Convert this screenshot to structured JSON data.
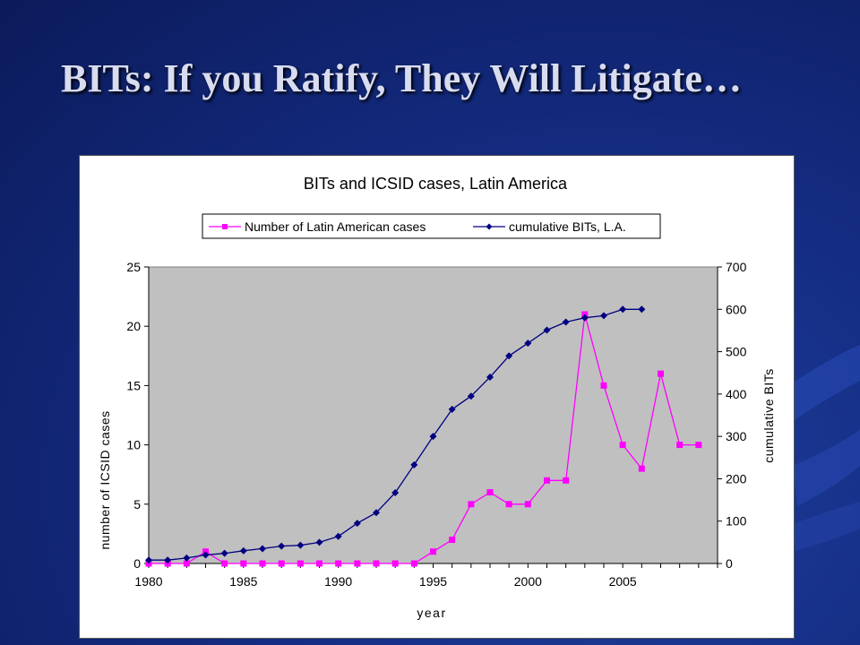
{
  "slide": {
    "title": "BITs: If you Ratify, They Will Litigate…"
  },
  "colors": {
    "background": "#142c82",
    "plot_area": "#c0c0c0",
    "series_cases": "#ff00ff",
    "series_bits": "#000080"
  },
  "chart_data": {
    "type": "line",
    "title": "BITs and ICSID cases, Latin America",
    "xlabel": "year",
    "ylabel": "number of ICSID cases",
    "y2label": "cumulative BITs",
    "xlim": [
      1980,
      2010
    ],
    "ylim": [
      0,
      25
    ],
    "y2lim": [
      0,
      700
    ],
    "x_ticks": [
      1980,
      1985,
      1990,
      1995,
      2000,
      2005
    ],
    "y_ticks": [
      0,
      5,
      10,
      15,
      20,
      25
    ],
    "y2_ticks": [
      0,
      100,
      200,
      300,
      400,
      500,
      600,
      700
    ],
    "legend_position": "top-center",
    "grid": false,
    "series": [
      {
        "name": "Number of Latin American cases",
        "axis": "left",
        "marker": "square",
        "color": "#ff00ff",
        "x": [
          1980,
          1981,
          1982,
          1983,
          1984,
          1985,
          1986,
          1987,
          1988,
          1989,
          1990,
          1991,
          1992,
          1993,
          1994,
          1995,
          1996,
          1997,
          1998,
          1999,
          2000,
          2001,
          2002,
          2003,
          2004,
          2005,
          2006,
          2007,
          2008,
          2009
        ],
        "values": [
          0,
          0,
          0,
          1,
          0,
          0,
          0,
          0,
          0,
          0,
          0,
          0,
          0,
          0,
          0,
          1,
          2,
          5,
          6,
          5,
          5,
          7,
          7,
          21,
          15,
          10,
          8,
          16,
          10,
          10
        ]
      },
      {
        "name": "cumulative BITs, L.A.",
        "axis": "right",
        "marker": "diamond",
        "color": "#000080",
        "x": [
          1980,
          1981,
          1982,
          1983,
          1984,
          1985,
          1986,
          1987,
          1988,
          1989,
          1990,
          1991,
          1992,
          1993,
          1994,
          1995,
          1996,
          1997,
          1998,
          1999,
          2000,
          2001,
          2002,
          2003,
          2004,
          2005,
          2006
        ],
        "values": [
          8,
          8,
          13,
          20,
          24,
          30,
          35,
          41,
          43,
          50,
          64,
          95,
          120,
          167,
          233,
          300,
          364,
          395,
          440,
          490,
          520,
          551,
          570,
          580,
          585,
          600,
          600
        ]
      }
    ]
  }
}
